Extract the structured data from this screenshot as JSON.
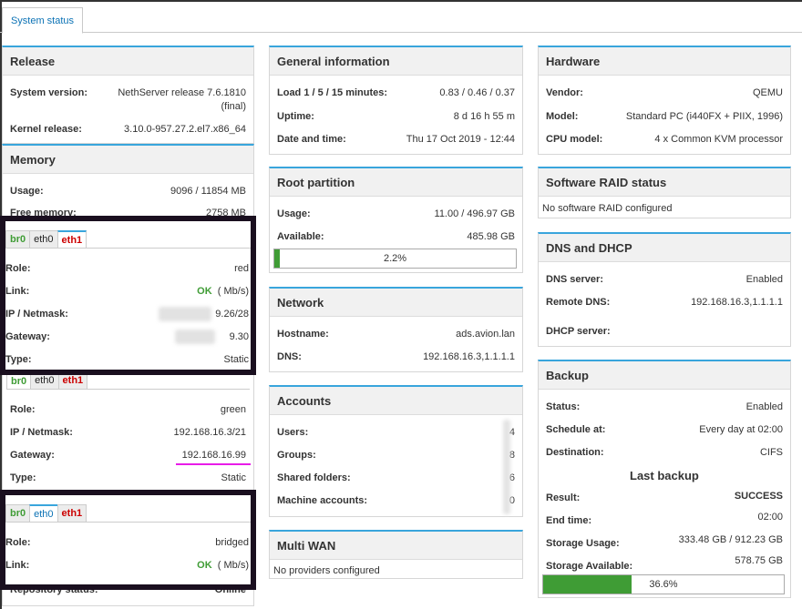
{
  "tabs": {
    "system_status": "System status"
  },
  "release": {
    "title": "Release",
    "system_version_label": "System version:",
    "system_version_value": "NethServer release 7.6.1810",
    "system_version_value2": "(final)",
    "kernel_label": "Kernel release:",
    "kernel_value": "3.10.0-957.27.2.el7.x86_64"
  },
  "memory": {
    "title": "Memory",
    "usage_label": "Usage:",
    "usage_value": "9096 / 11854 MB",
    "free_label": "Free memory:",
    "free_value": "2758 MB"
  },
  "iface_tabs": {
    "br0": "br0",
    "eth0": "eth0",
    "eth1": "eth1"
  },
  "iface_eth1": {
    "role_label": "Role:",
    "role_value": "red",
    "link_label": "Link:",
    "link_ok": "OK",
    "link_speed": "( Mb/s)",
    "ip_label": "IP / Netmask:",
    "ip_value": "9.26/28",
    "gw_label": "Gateway:",
    "gw_value": "9.30",
    "type_label": "Type:",
    "type_value": "Static"
  },
  "iface_br0": {
    "role_label": "Role:",
    "role_value": "green",
    "ip_label": "IP / Netmask:",
    "ip_value": "192.168.16.3/21",
    "gw_label": "Gateway:",
    "gw_value": "192.168.16.99",
    "type_label": "Type:",
    "type_value": "Static"
  },
  "iface_eth0": {
    "role_label": "Role:",
    "role_value": "bridged",
    "link_label": "Link:",
    "link_ok": "OK",
    "link_speed": "( Mb/s)"
  },
  "repo": {
    "label": "Repository status:",
    "value": "Online"
  },
  "general": {
    "title": "General information",
    "load_label": "Load 1 / 5 / 15 minutes:",
    "load_value": "0.83 / 0.46 / 0.37",
    "uptime_label": "Uptime:",
    "uptime_value": "8 d 16 h 55 m",
    "date_label": "Date and time:",
    "date_value": "Thu 17 Oct 2019 - 12:44"
  },
  "root_partition": {
    "title": "Root partition",
    "usage_label": "Usage:",
    "usage_value": "11.00 / 496.97 GB",
    "available_label": "Available:",
    "available_value": "485.98 GB",
    "percent_label": "2.2%",
    "percent": 2.2
  },
  "network": {
    "title": "Network",
    "hostname_label": "Hostname:",
    "hostname_value": "ads.avion.lan",
    "dns_label": "DNS:",
    "dns_value": "192.168.16.3,1.1.1.1"
  },
  "accounts": {
    "title": "Accounts",
    "users_label": "Users:",
    "users_value": "4",
    "groups_label": "Groups:",
    "groups_value": "8",
    "shared_label": "Shared folders:",
    "shared_value": "6",
    "machine_label": "Machine accounts:",
    "machine_value": "0"
  },
  "multiwan": {
    "title": "Multi WAN",
    "note": "No providers configured"
  },
  "hardware": {
    "title": "Hardware",
    "vendor_label": "Vendor:",
    "vendor_value": "QEMU",
    "model_label": "Model:",
    "model_value": "Standard PC (i440FX + PIIX, 1996)",
    "cpu_label": "CPU model:",
    "cpu_value": "4 x Common KVM processor"
  },
  "raid": {
    "title": "Software RAID status",
    "note": "No software RAID configured"
  },
  "dns_dhcp": {
    "title": "DNS and DHCP",
    "dns_server_label": "DNS server:",
    "dns_server_value": "Enabled",
    "remote_dns_label": "Remote DNS:",
    "remote_dns_value": "192.168.16.3,1.1.1.1",
    "dhcp_label": "DHCP server:"
  },
  "backup": {
    "title": "Backup",
    "status_label": "Status:",
    "status_value": "Enabled",
    "schedule_label": "Schedule at:",
    "schedule_value": "Every day at 02:00",
    "destination_label": "Destination:",
    "destination_value": "CIFS",
    "last_backup": "Last backup",
    "result_label": "Result:",
    "result_value": "SUCCESS",
    "end_label": "End time:",
    "end_value": "02:00",
    "storage_usage_label": "Storage Usage:",
    "storage_usage_value": "333.48 GB / 912.23 GB",
    "storage_available_label": "Storage Available:",
    "storage_available_value": "578.75 GB",
    "percent_label": "36.6%",
    "percent": 36.6
  },
  "colors": {
    "accent": "#39a5dc",
    "ok": "#3f9c35",
    "red": "#cc0000",
    "highlight": "#e81ce8",
    "overlay_border": "#1a0f1f"
  }
}
